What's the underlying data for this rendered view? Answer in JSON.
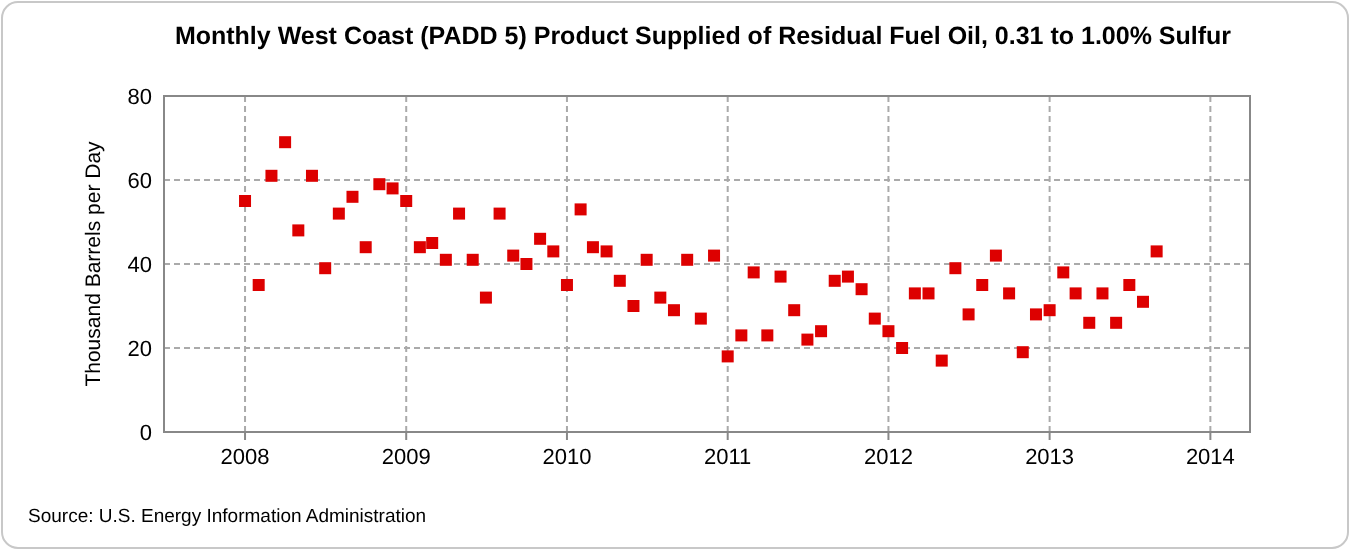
{
  "chart_data": {
    "type": "scatter",
    "title": "Monthly West Coast (PADD 5) Product Supplied of Residual Fuel Oil, 0.31 to 1.00% Sulfur",
    "ylabel": "Thousand Barrels per Day",
    "annotations": [
      "Source: U.S. Energy Information Administration"
    ],
    "x": [
      "2008-01",
      "2008-02",
      "2008-03",
      "2008-04",
      "2008-05",
      "2008-06",
      "2008-07",
      "2008-08",
      "2008-09",
      "2008-10",
      "2008-11",
      "2008-12",
      "2009-01",
      "2009-02",
      "2009-03",
      "2009-04",
      "2009-05",
      "2009-06",
      "2009-07",
      "2009-08",
      "2009-09",
      "2009-10",
      "2009-11",
      "2009-12",
      "2010-01",
      "2010-02",
      "2010-03",
      "2010-04",
      "2010-05",
      "2010-06",
      "2010-07",
      "2010-08",
      "2010-09",
      "2010-10",
      "2010-11",
      "2010-12",
      "2011-01",
      "2011-02",
      "2011-03",
      "2011-04",
      "2011-05",
      "2011-06",
      "2011-07",
      "2011-08",
      "2011-09",
      "2011-10",
      "2011-11",
      "2011-12",
      "2012-01",
      "2012-02",
      "2012-03",
      "2012-04",
      "2012-05",
      "2012-06",
      "2012-07",
      "2012-08",
      "2012-09",
      "2012-10",
      "2012-11",
      "2012-12",
      "2013-01",
      "2013-02",
      "2013-03",
      "2013-04",
      "2013-05",
      "2013-06",
      "2013-07",
      "2013-08",
      "2013-09"
    ],
    "series": [
      {
        "color": "#dd0000",
        "values": [
          55,
          35,
          61,
          69,
          48,
          61,
          39,
          52,
          56,
          44,
          59,
          58,
          55,
          44,
          45,
          41,
          52,
          41,
          32,
          52,
          42,
          40,
          46,
          43,
          35,
          53,
          44,
          43,
          36,
          30,
          41,
          32,
          29,
          41,
          27,
          42,
          18,
          23,
          38,
          23,
          37,
          29,
          22,
          24,
          36,
          37,
          34,
          27,
          24,
          20,
          33,
          33,
          17,
          39,
          28,
          35,
          42,
          33,
          19,
          28,
          29,
          38,
          33,
          26,
          33,
          26,
          35,
          31,
          43
        ]
      }
    ],
    "marker": "square",
    "grid": true,
    "xlim": [
      "2007-07",
      "2014-04"
    ],
    "xticks": [
      {
        "value": "2008",
        "label": "2008"
      },
      {
        "value": "2009",
        "label": "2009"
      },
      {
        "value": "2010",
        "label": "2010"
      },
      {
        "value": "2011",
        "label": "2011"
      },
      {
        "value": "2012",
        "label": "2012"
      },
      {
        "value": "2013",
        "label": "2013"
      },
      {
        "value": "2014",
        "label": "2014"
      }
    ],
    "ylim": [
      0,
      80
    ],
    "yticks": [
      0,
      20,
      40,
      60,
      80
    ]
  }
}
